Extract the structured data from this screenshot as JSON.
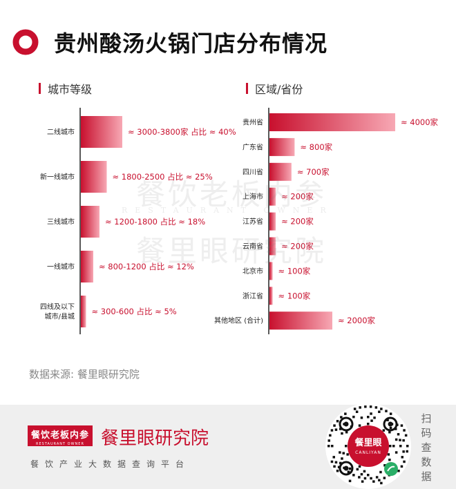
{
  "header": {
    "title": "贵州酸汤火锅门店分布情况"
  },
  "colors": {
    "accent": "#c8102e",
    "bar_light": "#f7a8b4",
    "axis": "#222222"
  },
  "chart_data": [
    {
      "type": "bar",
      "orientation": "horizontal",
      "title": "城市等级",
      "categories": [
        "二线城市",
        "新一线城市",
        "三线城市",
        "一线城市",
        "四线及以下\n城市/县城"
      ],
      "values": [
        40,
        25,
        18,
        12,
        5
      ],
      "value_unit": "占比 %",
      "data_labels": [
        "≈ 3000-3800家 占比 ≈ 40%",
        "≈ 1800-2500 占比 ≈ 25%",
        "≈ 1200-1800 占比 ≈ 18%",
        "≈ 800-1200 占比 ≈ 12%",
        "≈ 300-600 占比 ≈ 5%"
      ]
    },
    {
      "type": "bar",
      "orientation": "horizontal",
      "title": "区域/省份",
      "categories": [
        "贵州省",
        "广东省",
        "四川省",
        "上海市",
        "江苏省",
        "云南省",
        "北京市",
        "浙江省",
        "其他地区 (合计)"
      ],
      "values": [
        4000,
        800,
        700,
        200,
        200,
        200,
        100,
        100,
        2000
      ],
      "value_unit": "家",
      "data_labels": [
        "≈ 4000家",
        "≈ 800家",
        "≈ 700家",
        "≈ 200家",
        "≈ 200家",
        "≈ 200家",
        "≈ 100家",
        "≈ 100家",
        "≈ 2000家"
      ]
    }
  ],
  "watermark": {
    "line1": "餐饮老板内参",
    "line2": "RESTAURANT OWNER",
    "line3": "餐里眼研究院"
  },
  "source": "数据来源: 餐里眼研究院",
  "footer": {
    "badge_text": "餐饮老板内参",
    "badge_sub": "RESTAURANT OWNER",
    "brand_name": "餐里眼研究院",
    "slogan": "餐饮产业大数据查询平台",
    "qr_center_name": "餐里眼",
    "qr_center_sub": "CANLIYAN",
    "scan_text": "扫码查数据"
  }
}
